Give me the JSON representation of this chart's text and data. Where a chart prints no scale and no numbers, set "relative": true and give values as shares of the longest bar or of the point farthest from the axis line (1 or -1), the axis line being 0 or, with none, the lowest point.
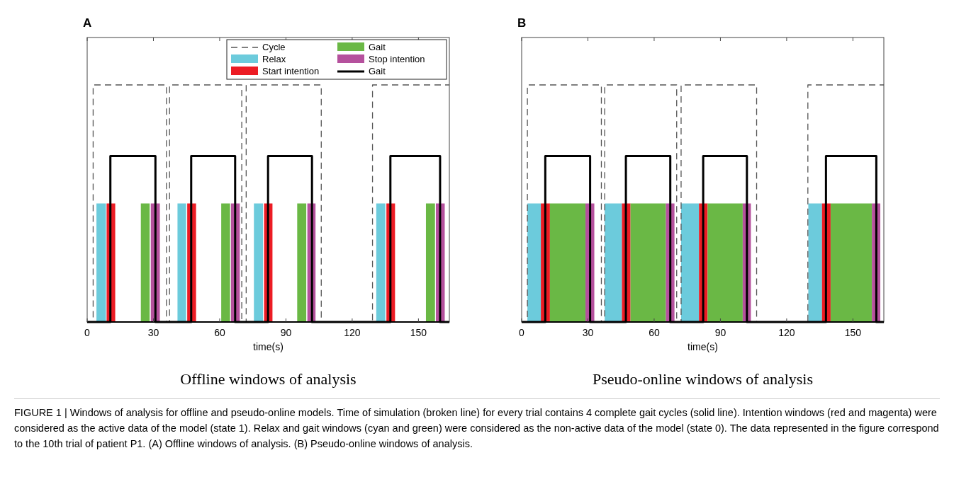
{
  "chart_data": [
    {
      "type": "line",
      "title": "Offline windows of analysis",
      "xlabel": "time(s)",
      "annotations": [
        "A"
      ],
      "relative": true,
      "xlim": [
        0,
        164
      ],
      "xticks": [
        0,
        30,
        60,
        90,
        120,
        150
      ],
      "legend": "top right",
      "series": [
        {
          "name": "Cycle",
          "line_style": "dashed",
          "color": "#555555",
          "x": [
            0,
            2.7,
            2.7,
            35.9,
            35.9,
            37.3,
            37.3,
            70,
            70,
            72,
            72,
            106,
            106,
            129.2,
            129.2,
            164
          ],
          "values": [
            0,
            0,
            1,
            1,
            0,
            0,
            1,
            1,
            0,
            0,
            1,
            1,
            0,
            0,
            1,
            1
          ]
        },
        {
          "name": "Relax",
          "type": "area",
          "color": "#6ccbdc",
          "x": [
            4.2,
            8.5,
            25,
            40.9,
            44.8,
            60,
            75.5,
            79.6,
            105,
            130.9,
            135.0
          ],
          "values": [
            0.5,
            0.5,
            null,
            0.5,
            0.5,
            null,
            0.5,
            0.5,
            null,
            0.5,
            0.5
          ]
        },
        {
          "name": "Start intention",
          "type": "area",
          "color": "#ec1c24",
          "x": [
            8.8,
            12.7,
            25,
            45.3,
            49.3,
            60,
            80.1,
            83.9,
            105,
            135.5,
            139.4
          ],
          "values": [
            0.5,
            0.5,
            null,
            0.5,
            0.5,
            null,
            0.5,
            0.5,
            null,
            0.5,
            0.5
          ]
        },
        {
          "name": "Gait",
          "type": "area",
          "color": "#6ab845",
          "x": [
            24.3,
            28.3,
            35,
            60.7,
            64.7,
            80,
            95.1,
            99.2,
            120,
            153.4,
            157.5
          ],
          "values": [
            0.5,
            0.5,
            null,
            0.5,
            0.5,
            null,
            0.5,
            0.5,
            null,
            0.5,
            0.5
          ]
        },
        {
          "name": "Stop intention",
          "type": "area",
          "color": "#b5519d",
          "x": [
            28.8,
            32.9,
            35,
            65.1,
            69.1,
            80,
            99.7,
            103.4,
            120,
            157.9,
            161.9
          ],
          "values": [
            0.5,
            0.5,
            null,
            0.5,
            0.5,
            null,
            0.5,
            0.5,
            null,
            0.5,
            0.5
          ]
        },
        {
          "name": "Gait",
          "line_style": "solid",
          "color": "#000000",
          "x": [
            0,
            10.5,
            10.5,
            30.9,
            30.9,
            47.1,
            47.1,
            67,
            67,
            81.9,
            81.9,
            101.8,
            101.8,
            137.3,
            137.3,
            159.8,
            159.8,
            164
          ],
          "values": [
            0,
            0,
            0.7,
            0.7,
            0,
            0,
            0.7,
            0.7,
            0,
            0,
            0.7,
            0.7,
            0,
            0,
            0.7,
            0.7,
            0,
            0
          ]
        }
      ]
    },
    {
      "type": "line",
      "title": "Pseudo-online windows of analysis",
      "xlabel": "time(s)",
      "annotations": [
        "B",
        "FIGURE 1 | Windows of analysis for offline and pseudo-online models. Time of simulation (broken line) for every trial contains 4 complete gait cycles (solid line). Intention windows (red and magenta) were considered as the active data of the model (state 1). Relax and gait windows (cyan and green) were considered as the non-active data of the model (state 0). The data represented in the figure correspond to the 10th trial of patient P1. (A) Offline windows of analysis. (B) Pseudo-online windows of analysis."
      ],
      "relative": true,
      "xlim": [
        0,
        164
      ],
      "xticks": [
        0,
        30,
        60,
        90,
        120,
        150
      ],
      "series": [
        {
          "line_style": "dashed",
          "color": "#555555",
          "x": [
            0,
            2.6,
            2.6,
            36.1,
            36.1,
            37.6,
            37.6,
            70.2,
            70.2,
            72.2,
            72.2,
            106.4,
            106.4,
            129.6,
            129.6,
            164
          ],
          "values": [
            0,
            0,
            1,
            1,
            0,
            0,
            1,
            1,
            0,
            0,
            1,
            1,
            0,
            0,
            1,
            1
          ]
        },
        {
          "type": "area",
          "color": "#6ccbdc",
          "x": [
            2.6,
            8.7,
            20,
            37.6,
            45.4,
            55,
            72.2,
            80.3,
            110,
            129.8,
            136.0
          ],
          "values": [
            0.5,
            0.5,
            null,
            0.5,
            0.5,
            null,
            0.5,
            0.5,
            null,
            0.5,
            0.5
          ]
        },
        {
          "type": "area",
          "color": "#ec1c24",
          "x": [
            8.7,
            12.8,
            20,
            45.4,
            49.3,
            55,
            80.3,
            84.2,
            110,
            136.0,
            139.9
          ],
          "values": [
            0.5,
            0.5,
            null,
            0.5,
            0.5,
            null,
            0.5,
            0.5,
            null,
            0.5,
            0.5
          ]
        },
        {
          "type": "area",
          "color": "#6ab845",
          "x": [
            12.8,
            28.9,
            35,
            49.3,
            65.3,
            70,
            84.2,
            100.1,
            115,
            139.9,
            158.6
          ],
          "values": [
            0.5,
            0.5,
            null,
            0.5,
            0.5,
            null,
            0.5,
            0.5,
            null,
            0.5,
            0.5
          ]
        },
        {
          "type": "area",
          "color": "#b5519d",
          "x": [
            28.9,
            32.9,
            35,
            65.3,
            69.2,
            70,
            100.1,
            103.8,
            115,
            158.6,
            162.4
          ],
          "values": [
            0.5,
            0.5,
            null,
            0.5,
            0.5,
            null,
            0.5,
            0.5,
            null,
            0.5,
            0.5
          ]
        },
        {
          "line_style": "solid",
          "color": "#000000",
          "x": [
            0,
            10.7,
            10.7,
            31,
            31,
            47.2,
            47.2,
            67.3,
            67.3,
            82.2,
            82.2,
            102,
            102,
            137.8,
            137.8,
            160.6,
            160.6,
            164
          ],
          "values": [
            0,
            0,
            0.7,
            0.7,
            0,
            0,
            0.7,
            0.7,
            0,
            0,
            0.7,
            0.7,
            0,
            0,
            0.7,
            0.7,
            0,
            0
          ]
        }
      ]
    }
  ]
}
